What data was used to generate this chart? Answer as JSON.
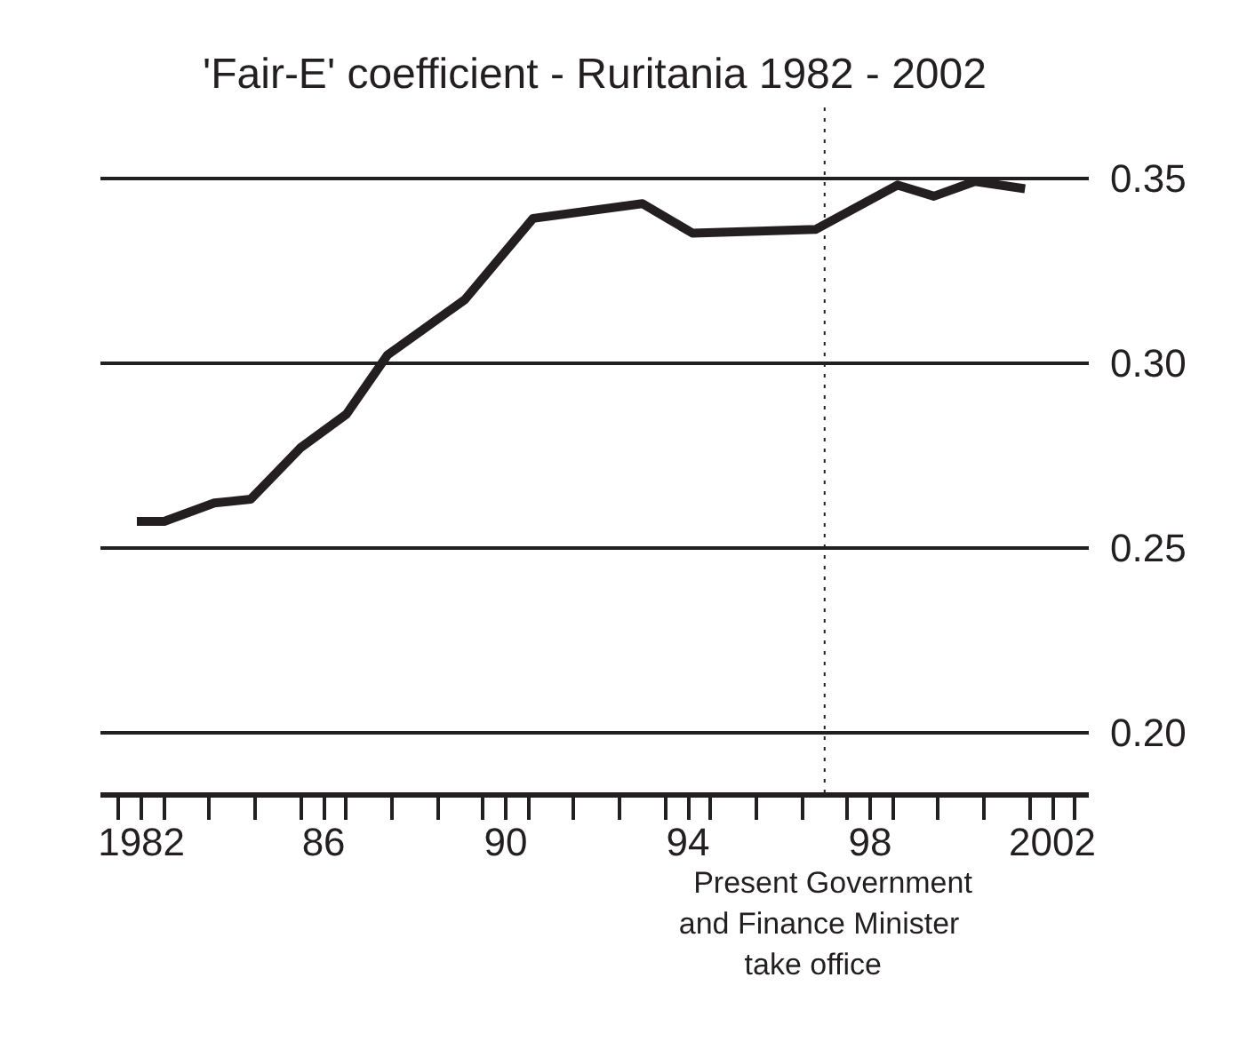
{
  "chart_data": {
    "type": "line",
    "title": "'Fair-E' coefficient - Ruritania 1982 - 2002",
    "x": [
      1981.9,
      1982.5,
      1983.6,
      1984.4,
      1985.5,
      1986.5,
      1987.4,
      1989.1,
      1990.6,
      1993.0,
      1994.1,
      1996.8,
      1998.6,
      1999.4,
      2000.3,
      2001.4
    ],
    "series": [
      {
        "color": "#231f20",
        "values": [
          0.257,
          0.257,
          0.262,
          0.263,
          0.277,
          0.286,
          0.302,
          0.317,
          0.339,
          0.343,
          0.335,
          0.336,
          0.348,
          0.345,
          0.349,
          0.347
        ]
      }
    ],
    "xlim": [
      1981.1,
      2002.8
    ],
    "ylim": [
      0.183,
      0.369
    ],
    "xticks": [
      {
        "value": 1981.5,
        "label": null
      },
      {
        "value": 1982,
        "label": "1982"
      },
      {
        "value": 1982.5,
        "label": null
      },
      {
        "value": 1983.5,
        "label": null
      },
      {
        "value": 1984.5,
        "label": null
      },
      {
        "value": 1985.5,
        "label": null
      },
      {
        "value": 1986,
        "label": "86"
      },
      {
        "value": 1986.5,
        "label": null
      },
      {
        "value": 1987.5,
        "label": null
      },
      {
        "value": 1988.5,
        "label": null
      },
      {
        "value": 1989.5,
        "label": null
      },
      {
        "value": 1990,
        "label": "90"
      },
      {
        "value": 1990.5,
        "label": null
      },
      {
        "value": 1991.5,
        "label": null
      },
      {
        "value": 1992.5,
        "label": null
      },
      {
        "value": 1993.5,
        "label": null
      },
      {
        "value": 1994,
        "label": "94"
      },
      {
        "value": 1994.5,
        "label": null
      },
      {
        "value": 1995.5,
        "label": null
      },
      {
        "value": 1996.5,
        "label": null
      },
      {
        "value": 1997.5,
        "label": null
      },
      {
        "value": 1998,
        "label": "98"
      },
      {
        "value": 1998.5,
        "label": null
      },
      {
        "value": 1999.5,
        "label": null
      },
      {
        "value": 2000.5,
        "label": null
      },
      {
        "value": 2001.5,
        "label": null
      },
      {
        "value": 2002,
        "label": "2002"
      },
      {
        "value": 2002.5,
        "label": null
      }
    ],
    "yticks": [
      {
        "value": 0.2,
        "label": "0.20"
      },
      {
        "value": 0.25,
        "label": "0.25"
      },
      {
        "value": 0.3,
        "label": "0.30"
      },
      {
        "value": 0.35,
        "label": "0.35"
      }
    ],
    "grid": "y",
    "line_style": "solid",
    "marker": "none",
    "ref_lines": [
      {
        "axis": "x",
        "value": 1997,
        "label": "Present Government\nand Finance Minister\ntake office",
        "line_style": "dotted"
      }
    ]
  }
}
